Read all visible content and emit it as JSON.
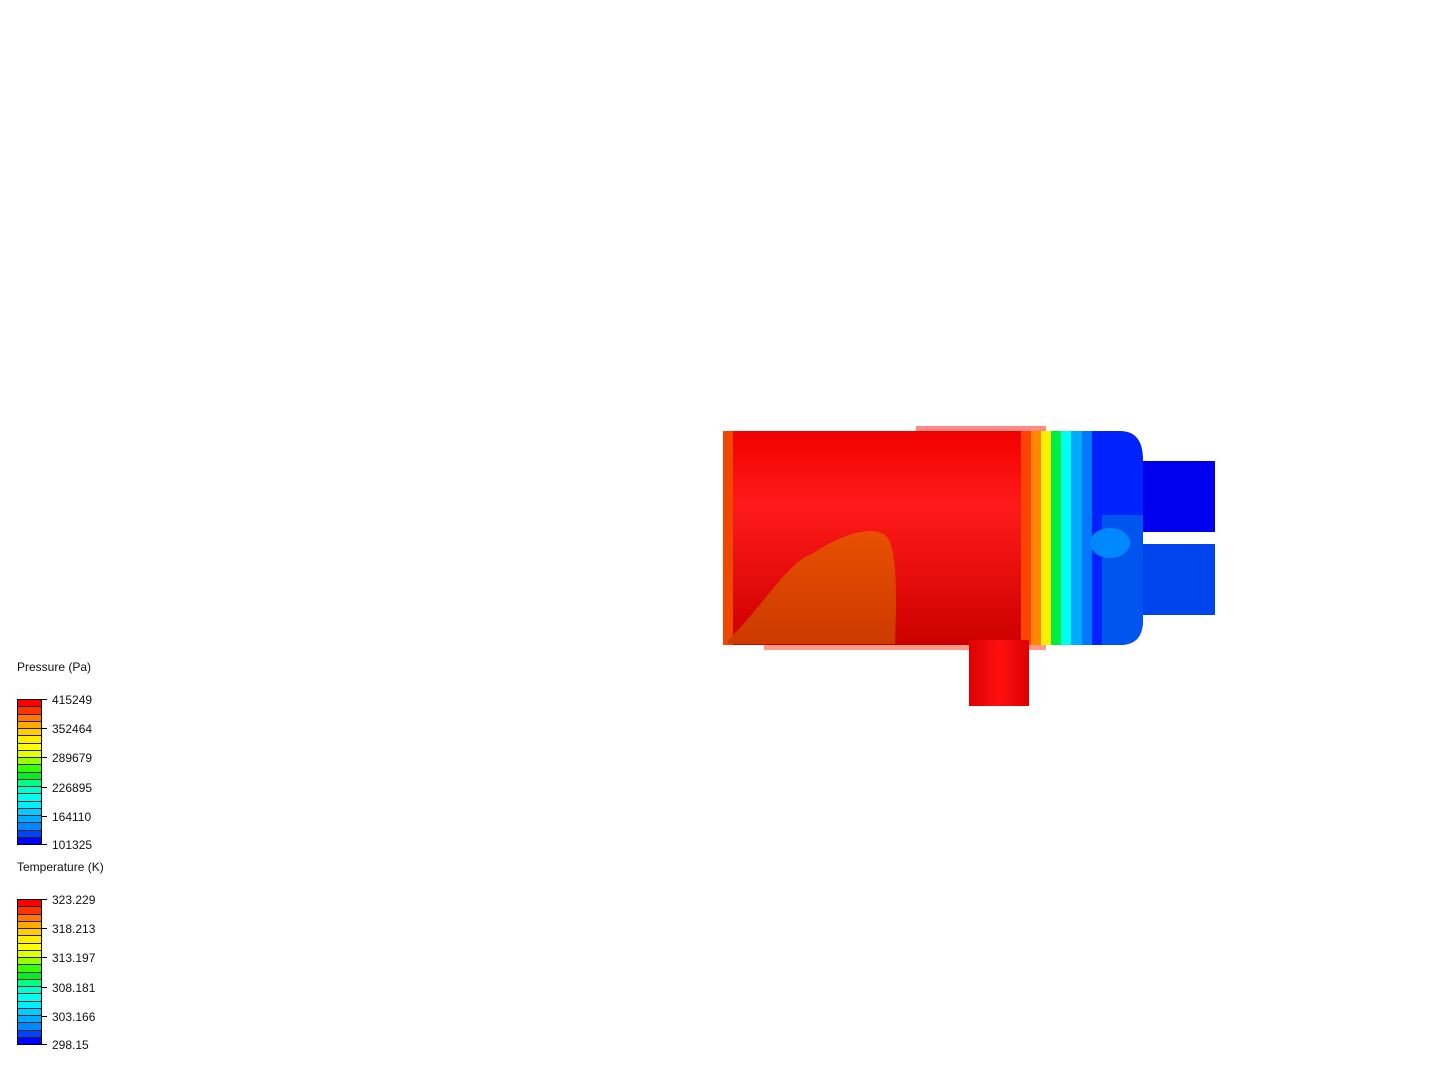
{
  "legends": [
    {
      "title": "Pressure (Pa)",
      "labels": [
        "415249",
        "352464",
        "289679",
        "226895",
        "164110",
        "101325"
      ],
      "colors": [
        "#ff0000",
        "#ff3300",
        "#ff7700",
        "#ffaa00",
        "#ffcc00",
        "#ffee00",
        "#ffff00",
        "#e0ff00",
        "#99ff00",
        "#33ff00",
        "#00ee22",
        "#00ff88",
        "#00ffcc",
        "#00ffee",
        "#00eeff",
        "#00ccff",
        "#00aaff",
        "#0088ff",
        "#0044ff",
        "#0000ff"
      ]
    },
    {
      "title": "Temperature (K)",
      "labels": [
        "323.229",
        "318.213",
        "313.197",
        "308.181",
        "303.166",
        "298.15"
      ],
      "colors": [
        "#ff0000",
        "#ff3300",
        "#ff7700",
        "#ffaa00",
        "#ffcc00",
        "#ffee00",
        "#ffff00",
        "#e0ff00",
        "#99ff00",
        "#33ff00",
        "#00ee22",
        "#00ff88",
        "#00ffcc",
        "#00ffee",
        "#00eeff",
        "#00ccff",
        "#00aaff",
        "#0088ff",
        "#0044ff",
        "#0000ff"
      ]
    }
  ],
  "colors": {
    "high": "#ff0000",
    "low": "#0000ff",
    "background": "#ffffff"
  }
}
